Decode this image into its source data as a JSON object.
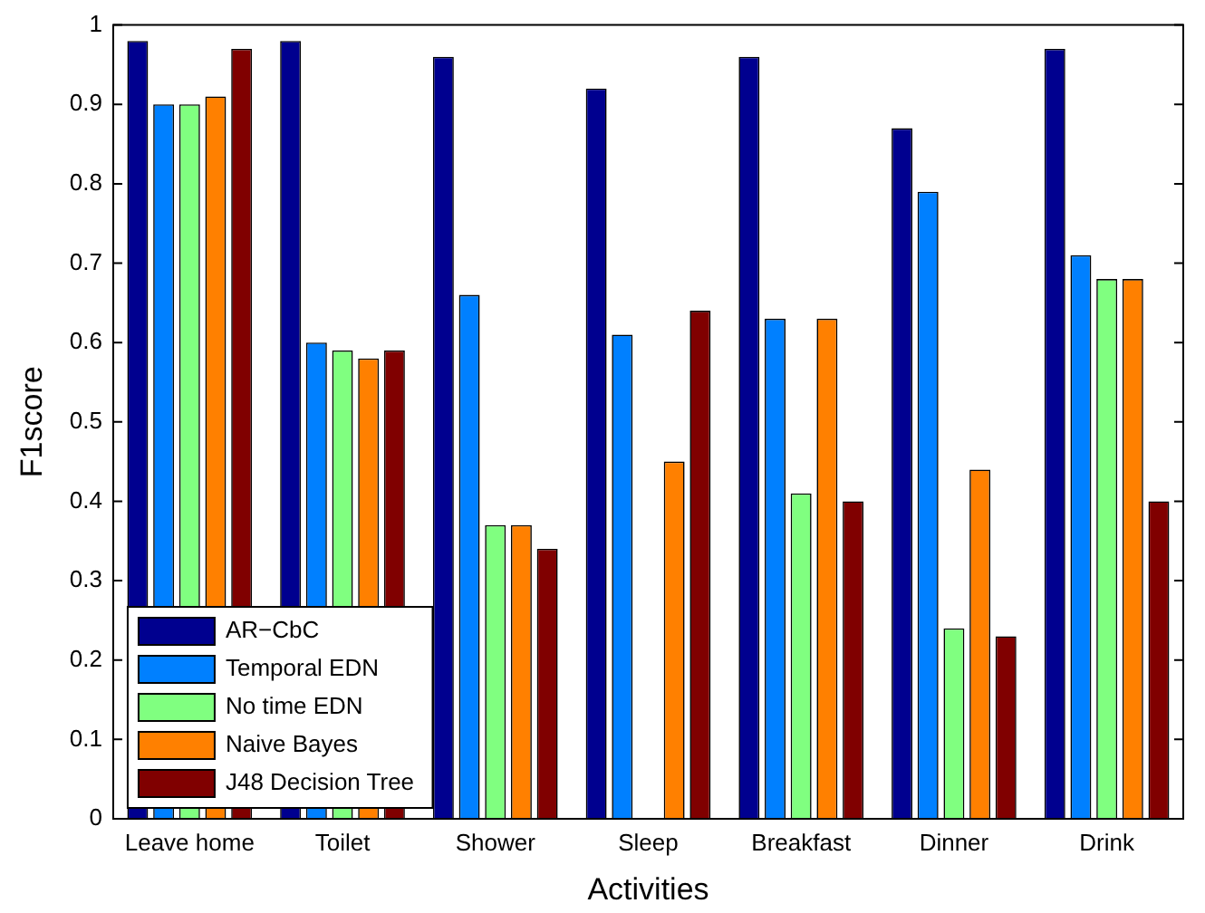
{
  "chart_data": {
    "type": "bar",
    "xlabel": "Activities",
    "ylabel": "F1score",
    "categories": [
      "Leave home",
      "Toilet",
      "Shower",
      "Sleep",
      "Breakfast",
      "Dinner",
      "Drink"
    ],
    "series": [
      {
        "name": "AR−CbC",
        "color": "#00008f",
        "values": [
          0.98,
          0.98,
          0.96,
          0.92,
          0.96,
          0.87,
          0.97
        ]
      },
      {
        "name": "Temporal EDN",
        "color": "#0080ff",
        "values": [
          0.9,
          0.6,
          0.66,
          0.61,
          0.63,
          0.79,
          0.71
        ]
      },
      {
        "name": "No time EDN",
        "color": "#80ff80",
        "values": [
          0.9,
          0.59,
          0.37,
          0,
          0.41,
          0.24,
          0.68
        ]
      },
      {
        "name": "Naive Bayes",
        "color": "#ff8000",
        "values": [
          0.91,
          0.58,
          0.37,
          0.45,
          0.63,
          0.44,
          0.68
        ]
      },
      {
        "name": "J48 Decision Tree",
        "color": "#800000",
        "values": [
          0.97,
          0.59,
          0.34,
          0.64,
          0.4,
          0.23,
          0.4
        ]
      }
    ],
    "ylim": [
      0,
      1
    ],
    "yticks": [
      0,
      0.1,
      0.2,
      0.3,
      0.4,
      0.5,
      0.6,
      0.7,
      0.8,
      0.9,
      1
    ],
    "grid": false,
    "legend": "bottom left"
  }
}
